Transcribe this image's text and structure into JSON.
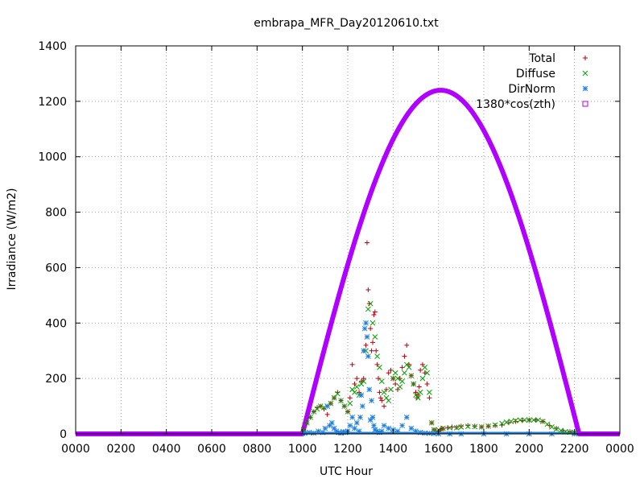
{
  "chart_data": {
    "type": "scatter",
    "title": "embrapa_MFR_Day20120610.txt",
    "xlabel": "UTC Hour",
    "ylabel": "Irradiance (W/m2)",
    "xlim": [
      0,
      24
    ],
    "ylim": [
      0,
      1400
    ],
    "x_tick_values": [
      0,
      2,
      4,
      6,
      8,
      10,
      12,
      14,
      16,
      18,
      20,
      22,
      24
    ],
    "x_tick_labels": [
      "0000",
      "0200",
      "0400",
      "0600",
      "0800",
      "1000",
      "1200",
      "1400",
      "1600",
      "1800",
      "2000",
      "2200",
      "0000"
    ],
    "y_ticks": [
      0,
      200,
      400,
      600,
      800,
      1000,
      1200,
      1400
    ],
    "grid": true,
    "legend_position": "top-right",
    "series": [
      {
        "name": "Total",
        "marker": "plus",
        "color": "#b8000f",
        "x": [
          10.05,
          10.2,
          10.35,
          10.5,
          10.65,
          10.8,
          10.95,
          11.1,
          11.25,
          11.4,
          11.55,
          11.7,
          11.85,
          12.0,
          12.1,
          12.2,
          12.3,
          12.4,
          12.5,
          12.6,
          12.7,
          12.8,
          12.85,
          12.9,
          12.95,
          13.0,
          13.05,
          13.1,
          13.15,
          13.2,
          13.25,
          13.3,
          13.35,
          13.4,
          13.45,
          13.5,
          13.6,
          13.7,
          13.8,
          13.9,
          14.0,
          14.1,
          14.2,
          14.3,
          14.4,
          14.5,
          14.6,
          14.7,
          14.8,
          14.9,
          15.0,
          15.05,
          15.1,
          15.15,
          15.2,
          15.3,
          15.4,
          15.5,
          15.6,
          15.7,
          15.8,
          15.9,
          16.0,
          16.05,
          16.1,
          16.15,
          16.2,
          16.4,
          16.6,
          16.8,
          17.0,
          17.3,
          17.6,
          17.9,
          18.2,
          18.5,
          18.8,
          19.1,
          19.4,
          19.7,
          20.0,
          20.3,
          20.6,
          20.9,
          21.2,
          21.5,
          21.8,
          22.0
        ],
        "y": [
          15,
          40,
          60,
          80,
          95,
          100,
          90,
          70,
          110,
          130,
          150,
          120,
          100,
          80,
          130,
          250,
          180,
          200,
          150,
          190,
          200,
          320,
          690,
          520,
          470,
          380,
          300,
          330,
          430,
          440,
          300,
          250,
          200,
          150,
          130,
          120,
          100,
          160,
          220,
          230,
          200,
          180,
          160,
          200,
          240,
          280,
          320,
          250,
          210,
          180,
          150,
          130,
          140,
          170,
          230,
          250,
          220,
          180,
          130,
          40,
          15,
          10,
          8,
          12,
          15,
          20,
          18,
          22,
          25,
          24,
          28,
          30,
          28,
          25,
          28,
          30,
          32,
          40,
          45,
          48,
          50,
          50,
          45,
          30,
          20,
          12,
          8,
          5
        ]
      },
      {
        "name": "Diffuse",
        "marker": "cross",
        "color": "#00a000",
        "x": [
          10.05,
          10.2,
          10.35,
          10.5,
          10.65,
          10.8,
          10.95,
          11.1,
          11.25,
          11.4,
          11.55,
          11.7,
          11.85,
          12.0,
          12.1,
          12.2,
          12.3,
          12.4,
          12.5,
          12.6,
          12.7,
          12.8,
          12.9,
          13.0,
          13.1,
          13.2,
          13.3,
          13.4,
          13.5,
          13.6,
          13.7,
          13.8,
          13.9,
          14.0,
          14.1,
          14.2,
          14.3,
          14.4,
          14.5,
          14.6,
          14.7,
          14.8,
          14.9,
          15.0,
          15.1,
          15.2,
          15.3,
          15.4,
          15.5,
          15.6,
          15.7,
          15.8,
          16.0,
          16.2,
          16.5,
          16.8,
          17.0,
          17.3,
          17.6,
          17.9,
          18.2,
          18.5,
          18.8,
          19.0,
          19.2,
          19.4,
          19.6,
          19.8,
          20.0,
          20.2,
          20.4,
          20.6,
          20.8,
          21.0,
          21.2,
          21.4,
          21.6,
          21.8,
          22.0
        ],
        "y": [
          15,
          40,
          60,
          80,
          90,
          100,
          95,
          100,
          110,
          130,
          145,
          120,
          100,
          80,
          110,
          160,
          150,
          170,
          140,
          180,
          190,
          300,
          450,
          470,
          400,
          350,
          280,
          240,
          190,
          150,
          130,
          120,
          160,
          200,
          220,
          200,
          170,
          190,
          220,
          250,
          240,
          210,
          180,
          140,
          130,
          150,
          200,
          240,
          220,
          150,
          40,
          15,
          15,
          20,
          22,
          22,
          25,
          27,
          26,
          25,
          28,
          32,
          38,
          42,
          45,
          48,
          50,
          50,
          50,
          50,
          50,
          45,
          35,
          25,
          18,
          12,
          8,
          6,
          5
        ]
      },
      {
        "name": "DirNorm",
        "marker": "star",
        "color": "#2080e0",
        "x": [
          10.1,
          10.3,
          10.5,
          10.7,
          10.9,
          11.0,
          11.1,
          11.2,
          11.3,
          11.4,
          11.5,
          11.6,
          11.7,
          11.8,
          11.9,
          12.0,
          12.1,
          12.2,
          12.3,
          12.4,
          12.5,
          12.55,
          12.6,
          12.65,
          12.7,
          12.75,
          12.8,
          12.85,
          12.9,
          12.95,
          13.0,
          13.05,
          13.1,
          13.15,
          13.2,
          13.3,
          13.4,
          13.5,
          13.6,
          13.8,
          14.0,
          14.2,
          14.4,
          14.6,
          14.8,
          15.0,
          15.2,
          15.4,
          15.6,
          15.8,
          16.0,
          16.5,
          17.0,
          18.0,
          19.0,
          20.0,
          21.0,
          22.0
        ],
        "y": [
          2,
          5,
          3,
          10,
          5,
          20,
          100,
          30,
          40,
          20,
          10,
          5,
          3,
          8,
          5,
          10,
          30,
          60,
          20,
          40,
          10,
          60,
          140,
          100,
          300,
          380,
          400,
          350,
          280,
          160,
          50,
          120,
          60,
          30,
          15,
          10,
          5,
          10,
          30,
          20,
          15,
          10,
          30,
          60,
          20,
          10,
          5,
          3,
          2,
          1,
          0,
          0,
          0,
          0,
          0,
          0,
          0,
          0
        ]
      },
      {
        "name": "1380*cos(zth)",
        "marker": "square",
        "color": "#b000ff",
        "sunrise": 10.0,
        "solar_noon": 16.1,
        "sunset": 22.2,
        "peak": 1240,
        "line_width": 3
      }
    ]
  }
}
